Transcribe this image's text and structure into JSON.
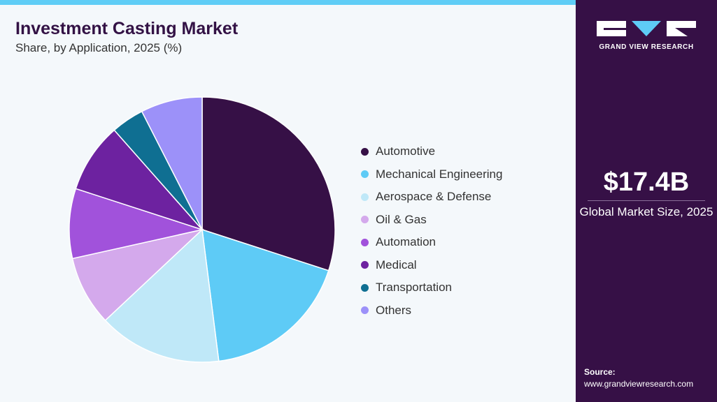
{
  "header": {
    "title": "Investment Casting Market",
    "subtitle": "Share, by Application, 2025 (%)"
  },
  "chart_data": {
    "type": "pie",
    "title": "Investment Casting Market",
    "subtitle": "Share, by Application, 2025 (%)",
    "legend_position": "right",
    "slices": [
      {
        "label": "Automotive",
        "value": 30.0,
        "color": "#361046"
      },
      {
        "label": "Mechanical Engineering",
        "value": 18.0,
        "color": "#5ecbf6"
      },
      {
        "label": "Aerospace & Defense",
        "value": 15.0,
        "color": "#bfe8f8"
      },
      {
        "label": "Oil & Gas",
        "value": 8.5,
        "color": "#d4a9ec"
      },
      {
        "label": "Automation",
        "value": 8.5,
        "color": "#a152db"
      },
      {
        "label": "Medical",
        "value": 8.5,
        "color": "#6d22a0"
      },
      {
        "label": "Transportation",
        "value": 4.0,
        "color": "#0f6f92"
      },
      {
        "label": "Others",
        "value": 7.5,
        "color": "#9c91f9"
      }
    ]
  },
  "sidebar": {
    "logo_text": "GRAND VIEW RESEARCH",
    "market_size_value": "$17.4B",
    "market_size_label": "Global Market Size, 2025",
    "source_label": "Source:",
    "source_url": "www.grandviewresearch.com"
  }
}
